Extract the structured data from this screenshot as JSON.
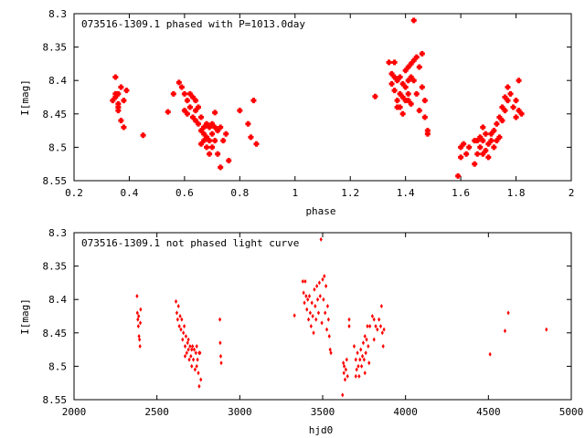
{
  "chart_data": [
    {
      "type": "scatter",
      "title": "073516-1309.1 phased with P=1013.0day",
      "xlabel": "phase",
      "ylabel": "I[mag]",
      "xlim": [
        0.2,
        2
      ],
      "ylim": [
        8.3,
        8.55
      ],
      "y_inverted": true,
      "xticks": [
        "0.2",
        "0.4",
        "0.6",
        "0.8",
        "1",
        "1.2",
        "1.4",
        "1.6",
        "1.8",
        "2"
      ],
      "xtick_values": [
        0.2,
        0.4,
        0.6,
        0.8,
        1.0,
        1.2,
        1.4,
        1.6,
        1.8,
        2.0
      ],
      "yticks": [
        "8.3",
        "8.35",
        "8.4",
        "8.45",
        "8.5",
        "8.55"
      ],
      "ytick_values": [
        8.3,
        8.35,
        8.4,
        8.45,
        8.5,
        8.55
      ],
      "marker_color": "#ff0000",
      "marker": "cross",
      "grid": false,
      "points": [
        [
          0.35,
          8.395
        ],
        [
          0.35,
          8.425
        ],
        [
          0.34,
          8.43
        ],
        [
          0.36,
          8.42
        ],
        [
          0.36,
          8.435
        ],
        [
          0.37,
          8.41
        ],
        [
          0.36,
          8.445
        ],
        [
          0.37,
          8.46
        ],
        [
          0.38,
          8.47
        ],
        [
          0.38,
          8.43
        ],
        [
          0.39,
          8.415
        ],
        [
          0.36,
          8.44
        ],
        [
          0.35,
          8.42
        ],
        [
          0.45,
          8.482
        ],
        [
          0.54,
          8.447
        ],
        [
          0.56,
          8.42
        ],
        [
          0.58,
          8.403
        ],
        [
          0.59,
          8.41
        ],
        [
          0.6,
          8.42
        ],
        [
          0.6,
          8.445
        ],
        [
          0.61,
          8.43
        ],
        [
          0.62,
          8.42
        ],
        [
          0.62,
          8.44
        ],
        [
          0.63,
          8.425
        ],
        [
          0.63,
          8.455
        ],
        [
          0.64,
          8.445
        ],
        [
          0.64,
          8.43
        ],
        [
          0.65,
          8.44
        ],
        [
          0.65,
          8.465
        ],
        [
          0.66,
          8.455
        ],
        [
          0.66,
          8.475
        ],
        [
          0.67,
          8.47
        ],
        [
          0.67,
          8.48
        ],
        [
          0.67,
          8.49
        ],
        [
          0.68,
          8.465
        ],
        [
          0.68,
          8.485
        ],
        [
          0.68,
          8.5
        ],
        [
          0.69,
          8.47
        ],
        [
          0.69,
          8.49
        ],
        [
          0.7,
          8.465
        ],
        [
          0.7,
          8.48
        ],
        [
          0.7,
          8.5
        ],
        [
          0.71,
          8.448
        ],
        [
          0.71,
          8.47
        ],
        [
          0.71,
          8.49
        ],
        [
          0.72,
          8.475
        ],
        [
          0.72,
          8.51
        ],
        [
          0.73,
          8.47
        ],
        [
          0.73,
          8.53
        ],
        [
          0.74,
          8.49
        ],
        [
          0.75,
          8.48
        ],
        [
          0.76,
          8.52
        ],
        [
          0.61,
          8.45
        ],
        [
          0.64,
          8.46
        ],
        [
          0.66,
          8.495
        ],
        [
          0.69,
          8.51
        ],
        [
          0.8,
          8.445
        ],
        [
          0.83,
          8.465
        ],
        [
          0.84,
          8.485
        ],
        [
          0.85,
          8.43
        ],
        [
          0.86,
          8.495
        ],
        [
          1.29,
          8.424
        ],
        [
          1.34,
          8.373
        ],
        [
          1.35,
          8.39
        ],
        [
          1.35,
          8.405
        ],
        [
          1.36,
          8.373
        ],
        [
          1.36,
          8.395
        ],
        [
          1.36,
          8.415
        ],
        [
          1.37,
          8.4
        ],
        [
          1.37,
          8.43
        ],
        [
          1.38,
          8.395
        ],
        [
          1.38,
          8.42
        ],
        [
          1.38,
          8.44
        ],
        [
          1.39,
          8.405
        ],
        [
          1.39,
          8.425
        ],
        [
          1.39,
          8.45
        ],
        [
          1.4,
          8.385
        ],
        [
          1.4,
          8.41
        ],
        [
          1.4,
          8.43
        ],
        [
          1.41,
          8.38
        ],
        [
          1.41,
          8.4
        ],
        [
          1.41,
          8.42
        ],
        [
          1.42,
          8.375
        ],
        [
          1.42,
          8.395
        ],
        [
          1.42,
          8.435
        ],
        [
          1.43,
          8.31
        ],
        [
          1.43,
          8.37
        ],
        [
          1.43,
          8.4
        ],
        [
          1.44,
          8.365
        ],
        [
          1.44,
          8.42
        ],
        [
          1.45,
          8.38
        ],
        [
          1.45,
          8.445
        ],
        [
          1.46,
          8.36
        ],
        [
          1.46,
          8.41
        ],
        [
          1.47,
          8.43
        ],
        [
          1.47,
          8.455
        ],
        [
          1.48,
          8.475
        ],
        [
          1.48,
          8.48
        ],
        [
          1.37,
          8.44
        ],
        [
          1.41,
          8.43
        ],
        [
          1.59,
          8.543
        ],
        [
          1.6,
          8.5
        ],
        [
          1.6,
          8.515
        ],
        [
          1.61,
          8.495
        ],
        [
          1.62,
          8.51
        ],
        [
          1.63,
          8.5
        ],
        [
          1.65,
          8.525
        ],
        [
          1.66,
          8.49
        ],
        [
          1.66,
          8.51
        ],
        [
          1.67,
          8.485
        ],
        [
          1.67,
          8.5
        ],
        [
          1.68,
          8.47
        ],
        [
          1.68,
          8.49
        ],
        [
          1.69,
          8.505
        ],
        [
          1.69,
          8.48
        ],
        [
          1.7,
          8.495
        ],
        [
          1.7,
          8.515
        ],
        [
          1.71,
          8.49
        ],
        [
          1.71,
          8.48
        ],
        [
          1.72,
          8.5
        ],
        [
          1.72,
          8.475
        ],
        [
          1.73,
          8.465
        ],
        [
          1.73,
          8.49
        ],
        [
          1.74,
          8.455
        ],
        [
          1.74,
          8.485
        ],
        [
          1.75,
          8.46
        ],
        [
          1.75,
          8.44
        ],
        [
          1.76,
          8.445
        ],
        [
          1.76,
          8.425
        ],
        [
          1.77,
          8.43
        ],
        [
          1.77,
          8.41
        ],
        [
          1.78,
          8.42
        ],
        [
          1.79,
          8.44
        ],
        [
          1.8,
          8.455
        ],
        [
          1.8,
          8.43
        ],
        [
          1.81,
          8.4
        ],
        [
          1.81,
          8.445
        ],
        [
          1.82,
          8.45
        ],
        [
          1.65,
          8.49
        ],
        [
          1.68,
          8.51
        ]
      ]
    },
    {
      "type": "scatter",
      "title": "073516-1309.1 not phased light curve",
      "xlabel": "hjd0",
      "ylabel": "I[mag]",
      "xlim": [
        2000,
        5000
      ],
      "ylim": [
        8.3,
        8.55
      ],
      "y_inverted": true,
      "xticks": [
        "2000",
        "2500",
        "3000",
        "3500",
        "4000",
        "4500",
        "5000"
      ],
      "xtick_values": [
        2000,
        2500,
        3000,
        3500,
        4000,
        4500,
        5000
      ],
      "yticks": [
        "8.3",
        "8.35",
        "8.4",
        "8.45",
        "8.5",
        "8.55"
      ],
      "ytick_values": [
        8.3,
        8.35,
        8.4,
        8.45,
        8.5,
        8.55
      ],
      "marker_color": "#ff0000",
      "marker": "diamond",
      "grid": false,
      "points": [
        [
          2380,
          8.395
        ],
        [
          2382,
          8.42
        ],
        [
          2385,
          8.43
        ],
        [
          2388,
          8.44
        ],
        [
          2390,
          8.425
        ],
        [
          2392,
          8.455
        ],
        [
          2395,
          8.46
        ],
        [
          2398,
          8.47
        ],
        [
          2400,
          8.435
        ],
        [
          2402,
          8.415
        ],
        [
          2615,
          8.403
        ],
        [
          2620,
          8.42
        ],
        [
          2625,
          8.43
        ],
        [
          2630,
          8.41
        ],
        [
          2635,
          8.44
        ],
        [
          2640,
          8.425
        ],
        [
          2645,
          8.445
        ],
        [
          2650,
          8.43
        ],
        [
          2655,
          8.46
        ],
        [
          2660,
          8.45
        ],
        [
          2665,
          8.44
        ],
        [
          2670,
          8.47
        ],
        [
          2675,
          8.455
        ],
        [
          2680,
          8.48
        ],
        [
          2685,
          8.465
        ],
        [
          2690,
          8.475
        ],
        [
          2695,
          8.49
        ],
        [
          2700,
          8.47
        ],
        [
          2705,
          8.485
        ],
        [
          2710,
          8.5
        ],
        [
          2715,
          8.47
        ],
        [
          2720,
          8.49
        ],
        [
          2725,
          8.475
        ],
        [
          2730,
          8.505
        ],
        [
          2735,
          8.48
        ],
        [
          2740,
          8.5
        ],
        [
          2745,
          8.49
        ],
        [
          2750,
          8.51
        ],
        [
          2755,
          8.53
        ],
        [
          2760,
          8.48
        ],
        [
          2765,
          8.52
        ],
        [
          2670,
          8.485
        ],
        [
          2690,
          8.46
        ],
        [
          2710,
          8.475
        ],
        [
          2740,
          8.47
        ],
        [
          2755,
          8.48
        ],
        [
          2880,
          8.43
        ],
        [
          2882,
          8.465
        ],
        [
          2885,
          8.485
        ],
        [
          2888,
          8.495
        ],
        [
          3330,
          8.424
        ],
        [
          3380,
          8.373
        ],
        [
          3385,
          8.39
        ],
        [
          3390,
          8.405
        ],
        [
          3395,
          8.373
        ],
        [
          3400,
          8.395
        ],
        [
          3405,
          8.415
        ],
        [
          3410,
          8.4
        ],
        [
          3415,
          8.43
        ],
        [
          3420,
          8.395
        ],
        [
          3425,
          8.42
        ],
        [
          3430,
          8.44
        ],
        [
          3435,
          8.405
        ],
        [
          3440,
          8.425
        ],
        [
          3445,
          8.45
        ],
        [
          3450,
          8.385
        ],
        [
          3455,
          8.41
        ],
        [
          3460,
          8.43
        ],
        [
          3465,
          8.38
        ],
        [
          3470,
          8.4
        ],
        [
          3475,
          8.42
        ],
        [
          3480,
          8.375
        ],
        [
          3485,
          8.395
        ],
        [
          3490,
          8.31
        ],
        [
          3495,
          8.435
        ],
        [
          3500,
          8.37
        ],
        [
          3505,
          8.4
        ],
        [
          3510,
          8.365
        ],
        [
          3515,
          8.42
        ],
        [
          3520,
          8.38
        ],
        [
          3525,
          8.445
        ],
        [
          3530,
          8.41
        ],
        [
          3535,
          8.43
        ],
        [
          3540,
          8.455
        ],
        [
          3545,
          8.475
        ],
        [
          3550,
          8.48
        ],
        [
          3620,
          8.543
        ],
        [
          3625,
          8.495
        ],
        [
          3628,
          8.51
        ],
        [
          3630,
          8.5
        ],
        [
          3635,
          8.52
        ],
        [
          3640,
          8.505
        ],
        [
          3645,
          8.49
        ],
        [
          3650,
          8.515
        ],
        [
          3660,
          8.43
        ],
        [
          3690,
          8.47
        ],
        [
          3700,
          8.49
        ],
        [
          3705,
          8.505
        ],
        [
          3710,
          8.48
        ],
        [
          3715,
          8.5
        ],
        [
          3720,
          8.515
        ],
        [
          3725,
          8.49
        ],
        [
          3730,
          8.475
        ],
        [
          3735,
          8.5
        ],
        [
          3740,
          8.485
        ],
        [
          3745,
          8.465
        ],
        [
          3750,
          8.49
        ],
        [
          3755,
          8.455
        ],
        [
          3760,
          8.48
        ],
        [
          3765,
          8.46
        ],
        [
          3770,
          8.44
        ],
        [
          3775,
          8.47
        ],
        [
          3780,
          8.495
        ],
        [
          3700,
          8.515
        ],
        [
          3785,
          8.44
        ],
        [
          3800,
          8.425
        ],
        [
          3810,
          8.43
        ],
        [
          3820,
          8.44
        ],
        [
          3830,
          8.445
        ],
        [
          3840,
          8.43
        ],
        [
          3850,
          8.44
        ],
        [
          3855,
          8.41
        ],
        [
          3860,
          8.45
        ],
        [
          3865,
          8.47
        ],
        [
          3870,
          8.445
        ],
        [
          3660,
          8.44
        ],
        [
          3755,
          8.51
        ],
        [
          3810,
          8.46
        ],
        [
          4510,
          8.482
        ],
        [
          4600,
          8.447
        ],
        [
          4620,
          8.42
        ],
        [
          4850,
          8.445
        ]
      ]
    }
  ]
}
